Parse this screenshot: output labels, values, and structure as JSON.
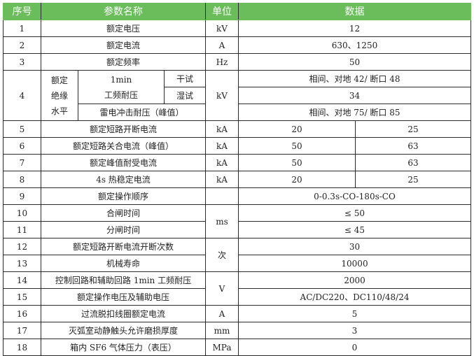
{
  "header": {
    "seq": "序号",
    "name": "参数名称",
    "unit": "单位",
    "data": "数据"
  },
  "colors": {
    "header_bg": "#6bbd5b"
  },
  "rows": [
    {
      "seq": "1",
      "name": "额定电压",
      "unit": "kV",
      "value": "12"
    },
    {
      "seq": "2",
      "name": "额定电流",
      "unit": "A",
      "value": "630、1250"
    },
    {
      "seq": "3",
      "name": "额定频率",
      "unit": "Hz",
      "value": "50"
    },
    {
      "seq": "4",
      "group": "额定绝缘水平",
      "sub1": "1min",
      "sub1b": "工频耐压",
      "dry": "干试",
      "wet": "湿试",
      "lightning": "雷电冲击耐压（峰值）",
      "unit": "kV",
      "dry_value": "相间、对地 42/ 断口 48",
      "wet_value": "34",
      "lightning_value": "相间、对地 75/ 断口 85"
    },
    {
      "seq": "5",
      "name": "额定短路开断电流",
      "unit": "kA",
      "v1": "20",
      "v2": "25"
    },
    {
      "seq": "6",
      "name": "额定短路关合电流（峰值）",
      "unit": "kA",
      "v1": "50",
      "v2": "63"
    },
    {
      "seq": "7",
      "name": "额定峰值耐受电流",
      "unit": "kA",
      "v1": "50",
      "v2": "63"
    },
    {
      "seq": "8",
      "name": "4s 热稳定电流",
      "unit": "kA",
      "v1": "20",
      "v2": "25"
    },
    {
      "seq": "9",
      "name": "额定操作顺序",
      "unit": "",
      "value": "0-0.3s-CO-180s-CO"
    },
    {
      "seq": "10",
      "name": "合闸时间",
      "unit": "ms",
      "value": "≤ 50"
    },
    {
      "seq": "11",
      "name": "分闸时间",
      "value": "≤ 45"
    },
    {
      "seq": "12",
      "name": "额定短路开断电流开断次数",
      "unit": "次",
      "value": "30"
    },
    {
      "seq": "13",
      "name": "机械寿命",
      "value": "10000"
    },
    {
      "seq": "14",
      "name": "控制回路和辅助回路 1min 工频耐压",
      "unit": "V",
      "value": "2000"
    },
    {
      "seq": "15",
      "name": "额定操作电压及辅助电压",
      "value": "AC/DC220、DC110/48/24"
    },
    {
      "seq": "16",
      "name": "过流脱扣线圈额定电流",
      "unit": "A",
      "value": "5"
    },
    {
      "seq": "17",
      "name": "灭弧室动静触头允许磨损厚度",
      "unit": "mm",
      "value": "3"
    },
    {
      "seq": "18",
      "name": "箱内 SF6 气体压力（表压）",
      "unit": "MPa",
      "value": "0"
    }
  ]
}
